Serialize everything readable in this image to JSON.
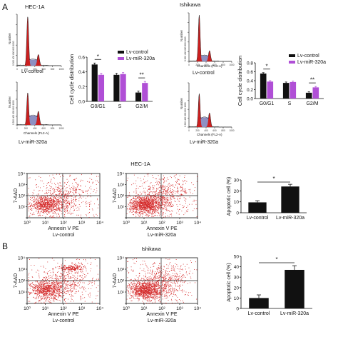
{
  "panel_labels": [
    "A",
    "B"
  ],
  "top": {
    "hec_title": "HEC-1A",
    "ish_title": "Ishikawa",
    "hist_ylabel": "Number",
    "hist_xlabel": "Channels (FL2-A)",
    "hist_xticks": [
      "0",
      "200",
      "400",
      "600",
      "800",
      "1000"
    ],
    "hist_yticks": [
      "0",
      "200",
      "400",
      "600",
      "800",
      "1000"
    ],
    "lv_control": "Lv-control",
    "lv_mir": "Lv-miR-320a"
  },
  "flow": {
    "hec_title": "HEC-1A",
    "ish_title": "Ishikawa",
    "ylabel": "7-AAD",
    "xlabel": "Annexin V PE",
    "ticks": [
      "10⁰",
      "10¹",
      "10²",
      "10³",
      "10⁴"
    ],
    "lv_control": "Lv-control",
    "lv_mir": "Lv-miR-320a"
  },
  "colors": {
    "control": "#111111",
    "mir": "#b04fd6",
    "flow_dots": "#d42a2a",
    "hist_red": "#cc1f1f",
    "hist_blue": "#8e90c2"
  },
  "chart_data": [
    {
      "type": "bar",
      "id": "cell-cycle-hec1a",
      "ylabel": "Cell cycle distribution",
      "categories": [
        "G0/G1",
        "S",
        "G2/M"
      ],
      "ylim": [
        0,
        0.6
      ],
      "yticks": [
        "0.0",
        "0.2",
        "0.4",
        "0.6"
      ],
      "series": [
        {
          "name": "Lv-control",
          "values": [
            0.5,
            0.36,
            0.12
          ]
        },
        {
          "name": "Lv-miR-320a",
          "values": [
            0.36,
            0.37,
            0.25
          ]
        }
      ],
      "significance": [
        {
          "category": "G0/G1",
          "label": "*"
        },
        {
          "category": "G2/M",
          "label": "**"
        }
      ],
      "legend": "top-right"
    },
    {
      "type": "bar",
      "id": "cell-cycle-ishikawa",
      "ylabel": "Cell cycle distribution",
      "categories": [
        "G0/G1",
        "S",
        "G2/M"
      ],
      "ylim": [
        0,
        0.8
      ],
      "yticks": [
        "0.0",
        "0.2",
        "0.4",
        "0.6",
        "0.8"
      ],
      "series": [
        {
          "name": "Lv-control",
          "values": [
            0.56,
            0.35,
            0.13
          ]
        },
        {
          "name": "Lv-miR-320a",
          "values": [
            0.38,
            0.37,
            0.25
          ]
        }
      ],
      "significance": [
        {
          "category": "G0/G1",
          "label": "*"
        },
        {
          "category": "G2/M",
          "label": "**"
        }
      ],
      "legend": "top-right"
    },
    {
      "type": "bar",
      "id": "apoptosis-hec1a",
      "ylabel": "Apoptotic cell (%)",
      "categories": [
        "Lv-control",
        "Lv-miR-320a"
      ],
      "ylim": [
        0,
        30
      ],
      "yticks": [
        "0",
        "10",
        "20",
        "30"
      ],
      "values": [
        9.5,
        24
      ],
      "errors": [
        1.5,
        2
      ],
      "significance": [
        {
          "between": [
            "Lv-control",
            "Lv-miR-320a"
          ],
          "label": "*"
        }
      ]
    },
    {
      "type": "bar",
      "id": "apoptosis-ishikawa",
      "ylabel": "Apoptotic cell (%)",
      "categories": [
        "Lv-control",
        "Lv-miR-320a"
      ],
      "ylim": [
        0,
        50
      ],
      "yticks": [
        "0",
        "10",
        "20",
        "30",
        "40",
        "50"
      ],
      "values": [
        10,
        37
      ],
      "errors": [
        3,
        4
      ],
      "significance": [
        {
          "between": [
            "Lv-control",
            "Lv-miR-320a"
          ],
          "label": "*"
        }
      ]
    }
  ]
}
